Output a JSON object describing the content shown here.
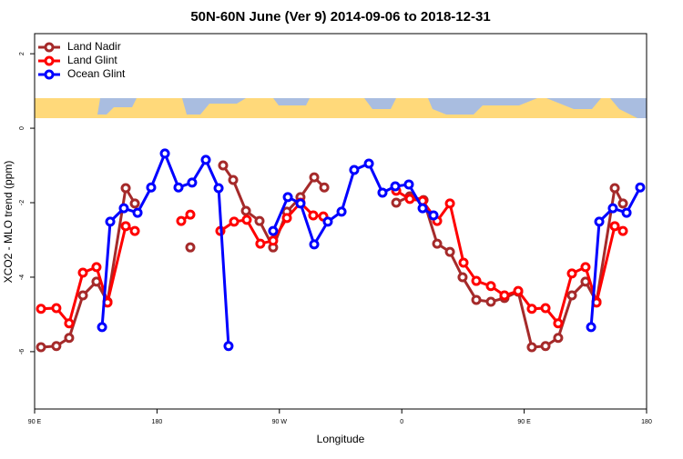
{
  "chart_data": {
    "type": "line",
    "title": "50N-60N June (Ver 9)   2014-09-06 to 2018-12-31",
    "x_label": "Longitude",
    "y_label": "XCO2 - MLO trend (ppm)",
    "xlim": [
      90,
      540
    ],
    "ylim": [
      -7.54,
      2.54
    ],
    "xticks": [
      {
        "value": 90,
        "label": "90 E"
      },
      {
        "value": 180,
        "label": "180"
      },
      {
        "value": 270,
        "label": "90 W"
      },
      {
        "value": 360,
        "label": "0"
      },
      {
        "value": 450,
        "label": "90 E"
      },
      {
        "value": 540,
        "label": "180"
      }
    ],
    "yticks": [
      2,
      0,
      -2,
      -4,
      -6
    ],
    "legend": "top-left",
    "series": [
      {
        "name": "Land Nadir",
        "color": "#a52a2a",
        "x": [
          94.7,
          106,
          115.4,
          125.5,
          135.5,
          143.6,
          157,
          163.7,
          null,
          204.5,
          null,
          228.6,
          236,
          245.4,
          255.4,
          265.4,
          275.5,
          285.5,
          295.6,
          303,
          null,
          355.9,
          365.9,
          376,
          386,
          395.4,
          404.7,
          414.8,
          425.5,
          435.5,
          445.6,
          455.6,
          465.7,
          475,
          485.1,
          495.1,
          503.2,
          516.6,
          522.6
        ],
        "values": [
          -5.88,
          -5.85,
          -5.63,
          -4.49,
          -4.12,
          -4.66,
          -1.61,
          -2.02,
          null,
          -3.2,
          null,
          -1.0,
          -1.39,
          -2.22,
          -2.49,
          -3.2,
          -2.24,
          -1.85,
          -1.32,
          -1.59,
          null,
          -2.0,
          -1.83,
          -1.93,
          -3.1,
          -3.32,
          -4.0,
          -4.61,
          -4.66,
          -4.56,
          -4.39,
          -5.88,
          -5.85,
          -5.63,
          -4.49,
          -4.12,
          -4.66,
          -1.61,
          -2.02
        ]
      },
      {
        "name": "Land Glint",
        "color": "#ff0000",
        "x": [
          94.7,
          106,
          115.4,
          125.5,
          135.5,
          143.6,
          157,
          163.7,
          null,
          197.8,
          204.5,
          null,
          226.6,
          236.7,
          246,
          256,
          265.4,
          275.5,
          285.5,
          294.9,
          302.3,
          null,
          355.9,
          365.9,
          375.3,
          386,
          395.4,
          405.4,
          414.8,
          425.5,
          435.5,
          445.6,
          455.6,
          465.7,
          475,
          485.1,
          495.1,
          503.2,
          516.6,
          522.6
        ],
        "values": [
          -4.85,
          -4.83,
          -5.24,
          -3.88,
          -3.73,
          -4.68,
          -2.63,
          -2.76,
          null,
          -2.49,
          -2.32,
          null,
          -2.76,
          -2.51,
          -2.46,
          -3.1,
          -3.02,
          -2.41,
          -2.0,
          -2.34,
          -2.37,
          null,
          -1.68,
          -1.9,
          -1.95,
          -2.49,
          -2.02,
          -3.61,
          -4.1,
          -4.24,
          -4.49,
          -4.37,
          -4.85,
          -4.83,
          -5.24,
          -3.9,
          -3.73,
          -4.68,
          -2.63,
          -2.76
        ]
      },
      {
        "name": "Ocean Glint",
        "color": "#0000ff",
        "x": [
          139.6,
          145.6,
          155.6,
          165.7,
          175.7,
          185.8,
          195.8,
          205.8,
          215.9,
          225.3,
          232.6,
          null,
          265.4,
          276.2,
          285.5,
          295.6,
          305.6,
          315.7,
          325,
          335.8,
          345.8,
          355.2,
          365.2,
          375.3,
          383.3,
          null,
          499.2,
          505.2,
          515.2,
          525.3,
          535.3
        ],
        "values": [
          -5.34,
          -2.51,
          -2.15,
          -2.27,
          -1.59,
          -0.68,
          -1.59,
          -1.46,
          -0.85,
          -1.61,
          -5.85,
          null,
          -2.76,
          -1.85,
          -2.02,
          -3.12,
          -2.51,
          -2.24,
          -1.12,
          -0.95,
          -1.73,
          -1.56,
          -1.51,
          -2.15,
          -2.34,
          null,
          -5.34,
          -2.51,
          -2.15,
          -2.27,
          -1.59
        ]
      }
    ]
  }
}
